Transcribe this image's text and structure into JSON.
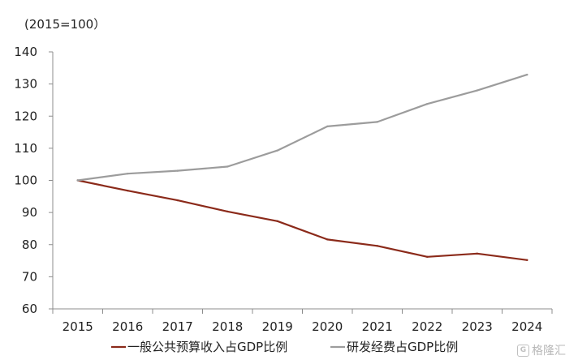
{
  "chart_data": {
    "type": "line",
    "unit_label": "(2015=100）",
    "x": [
      "2015",
      "2016",
      "2017",
      "2018",
      "2019",
      "2020",
      "2021",
      "2022",
      "2023",
      "2024"
    ],
    "y_ticks": [
      "60",
      "70",
      "80",
      "90",
      "100",
      "110",
      "120",
      "130",
      "140"
    ],
    "ylim": [
      60,
      140
    ],
    "grid": false,
    "legend_position": "bottom",
    "series": [
      {
        "name": "一般公共预算收入占GDP比例",
        "color": "#8b2a1a",
        "values": [
          100,
          96.8,
          93.8,
          90.3,
          87.3,
          81.6,
          79.6,
          76.2,
          77.2,
          75.2
        ]
      },
      {
        "name": "研发经费占GDP比例",
        "color": "#9c9c9c",
        "values": [
          100,
          102.1,
          103,
          104.3,
          109.3,
          116.8,
          118.2,
          123.8,
          128,
          132.9
        ]
      }
    ]
  },
  "watermark": {
    "text": "格隆汇",
    "icon_glyph": "G"
  }
}
